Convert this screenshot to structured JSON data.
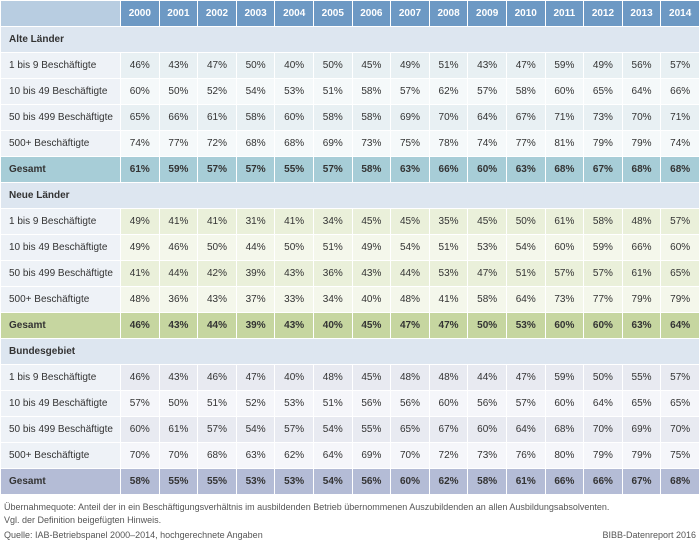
{
  "years": [
    "2000",
    "2001",
    "2002",
    "2003",
    "2004",
    "2005",
    "2006",
    "2007",
    "2008",
    "2009",
    "2010",
    "2011",
    "2012",
    "2013",
    "2014"
  ],
  "sections": [
    {
      "title": "Alte Länder",
      "header_bg": "#dde6f0",
      "row_bg_a": "#e8f0f3",
      "row_bg_b": "#f5f9fa",
      "total_bg": "#a7cdd7",
      "rows": [
        {
          "label": "1 bis 9 Beschäftigte",
          "values": [
            "46%",
            "43%",
            "47%",
            "50%",
            "40%",
            "50%",
            "45%",
            "49%",
            "51%",
            "43%",
            "47%",
            "59%",
            "49%",
            "56%",
            "57%"
          ]
        },
        {
          "label": "10 bis 49 Beschäftigte",
          "values": [
            "60%",
            "50%",
            "52%",
            "54%",
            "53%",
            "51%",
            "58%",
            "57%",
            "62%",
            "57%",
            "58%",
            "60%",
            "65%",
            "64%",
            "66%"
          ]
        },
        {
          "label": "50 bis 499 Beschäftigte",
          "values": [
            "65%",
            "66%",
            "61%",
            "58%",
            "60%",
            "58%",
            "58%",
            "69%",
            "70%",
            "64%",
            "67%",
            "71%",
            "73%",
            "70%",
            "71%"
          ]
        },
        {
          "label": "500+ Beschäftigte",
          "values": [
            "74%",
            "77%",
            "72%",
            "68%",
            "68%",
            "69%",
            "73%",
            "75%",
            "78%",
            "74%",
            "77%",
            "81%",
            "79%",
            "79%",
            "74%"
          ]
        }
      ],
      "total": {
        "label": "Gesamt",
        "values": [
          "61%",
          "59%",
          "57%",
          "57%",
          "55%",
          "57%",
          "58%",
          "63%",
          "66%",
          "60%",
          "63%",
          "68%",
          "67%",
          "68%",
          "68%"
        ]
      }
    },
    {
      "title": "Neue Länder",
      "header_bg": "#dde6f0",
      "row_bg_a": "#eaf0da",
      "row_bg_b": "#f4f7eb",
      "total_bg": "#c6d6a0",
      "rows": [
        {
          "label": "1 bis 9 Beschäftigte",
          "values": [
            "49%",
            "41%",
            "41%",
            "31%",
            "41%",
            "34%",
            "45%",
            "45%",
            "35%",
            "45%",
            "50%",
            "61%",
            "58%",
            "48%",
            "57%"
          ]
        },
        {
          "label": "10 bis 49 Beschäftigte",
          "values": [
            "49%",
            "46%",
            "50%",
            "44%",
            "50%",
            "51%",
            "49%",
            "54%",
            "51%",
            "53%",
            "54%",
            "60%",
            "59%",
            "66%",
            "60%"
          ]
        },
        {
          "label": "50 bis 499 Beschäftigte",
          "values": [
            "41%",
            "44%",
            "42%",
            "39%",
            "43%",
            "36%",
            "43%",
            "44%",
            "53%",
            "47%",
            "51%",
            "57%",
            "57%",
            "61%",
            "65%"
          ]
        },
        {
          "label": "500+ Beschäftigte",
          "values": [
            "48%",
            "36%",
            "43%",
            "37%",
            "33%",
            "34%",
            "40%",
            "48%",
            "41%",
            "58%",
            "64%",
            "73%",
            "77%",
            "79%",
            "79%"
          ]
        }
      ],
      "total": {
        "label": "Gesamt",
        "values": [
          "46%",
          "43%",
          "44%",
          "39%",
          "43%",
          "40%",
          "45%",
          "47%",
          "47%",
          "50%",
          "53%",
          "60%",
          "60%",
          "63%",
          "64%"
        ]
      }
    },
    {
      "title": "Bundesgebiet",
      "header_bg": "#dde6f0",
      "row_bg_a": "#e8eaf1",
      "row_bg_b": "#f5f6fa",
      "total_bg": "#b4bcd6",
      "rows": [
        {
          "label": "1 bis 9 Beschäftigte",
          "values": [
            "46%",
            "43%",
            "46%",
            "47%",
            "40%",
            "48%",
            "45%",
            "48%",
            "48%",
            "44%",
            "47%",
            "59%",
            "50%",
            "55%",
            "57%"
          ]
        },
        {
          "label": "10 bis 49 Beschäftigte",
          "values": [
            "57%",
            "50%",
            "51%",
            "52%",
            "53%",
            "51%",
            "56%",
            "56%",
            "60%",
            "56%",
            "57%",
            "60%",
            "64%",
            "65%",
            "65%"
          ]
        },
        {
          "label": "50 bis 499 Beschäftigte",
          "values": [
            "60%",
            "61%",
            "57%",
            "54%",
            "57%",
            "54%",
            "55%",
            "65%",
            "67%",
            "60%",
            "64%",
            "68%",
            "70%",
            "69%",
            "70%"
          ]
        },
        {
          "label": "500+ Beschäftigte",
          "values": [
            "70%",
            "70%",
            "68%",
            "63%",
            "62%",
            "64%",
            "69%",
            "70%",
            "72%",
            "73%",
            "76%",
            "80%",
            "79%",
            "79%",
            "75%"
          ]
        }
      ],
      "total": {
        "label": "Gesamt",
        "values": [
          "58%",
          "55%",
          "55%",
          "53%",
          "53%",
          "54%",
          "56%",
          "60%",
          "62%",
          "58%",
          "61%",
          "66%",
          "66%",
          "67%",
          "68%"
        ]
      }
    }
  ],
  "footnote_lines": [
    "Übernahmequote: Anteil der in ein Beschäftigungsverhältnis im ausbildenden Betrieb übernommenen Auszubildenden an allen Ausbildungsabsolventen.",
    "Vgl. der Definition beigefügten Hinweis."
  ],
  "source_left": "Quelle: IAB-Betriebspanel 2000–2014, hochgerechnete Angaben",
  "source_right": "BIBB-Datenreport 2016",
  "label_bg": "#eef2f7",
  "header_year_bg": "#6d99c4",
  "corner_bg": "#b8cde1"
}
